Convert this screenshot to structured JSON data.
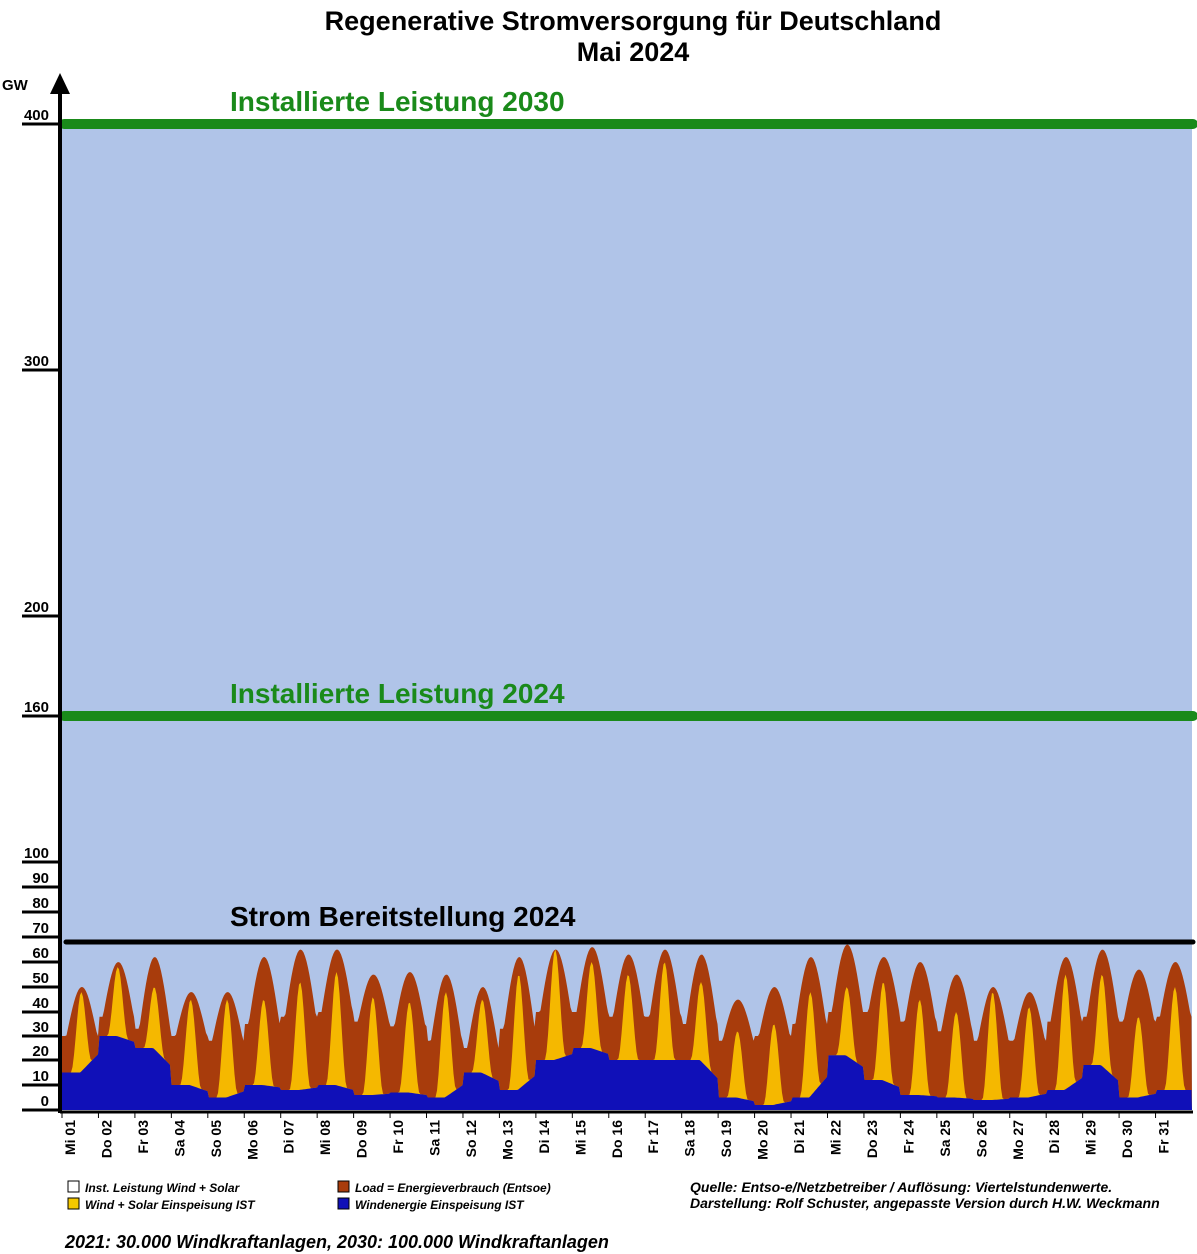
{
  "chart_data": {
    "type": "area",
    "title": "Regenerative Stromversorgung für Deutschland",
    "subtitle": "Mai 2024",
    "ylabel": "GW",
    "ylim": [
      0,
      400
    ],
    "yticks": [
      "0",
      "10",
      "20",
      "30",
      "40",
      "50",
      "60",
      "70",
      "80",
      "90",
      "100",
      "160",
      "200",
      "300",
      "400"
    ],
    "categories": [
      "Mi 01",
      "Do 02",
      "Fr 03",
      "Sa 04",
      "So 05",
      "Mo 06",
      "Di 07",
      "Mi 08",
      "Do 09",
      "Fr 10",
      "Sa 11",
      "So 12",
      "Mo 13",
      "Di 14",
      "Mi 15",
      "Do 16",
      "Fr 17",
      "Sa 18",
      "So 19",
      "Mo 20",
      "Di 21",
      "Mi 22",
      "Do 23",
      "Fr 24",
      "Sa 25",
      "So 26",
      "Mo 27",
      "Di 28",
      "Mi 29",
      "Do 30",
      "Fr 31"
    ],
    "reference_lines": [
      {
        "value": 400,
        "label": "Installierte Leistung 2030",
        "color": "#1a8a1a"
      },
      {
        "value": 160,
        "label": "Installierte Leistung 2024",
        "color": "#1a8a1a"
      },
      {
        "value": 68,
        "label": "Strom Bereitstellung 2024",
        "color": "#000000"
      }
    ],
    "series": [
      {
        "name": "Load = Energieverbrauch (Entsoe)",
        "color": "#a83c0c",
        "day_max": [
          50,
          60,
          62,
          48,
          48,
          62,
          65,
          65,
          55,
          56,
          55,
          50,
          62,
          65,
          66,
          63,
          65,
          63,
          45,
          50,
          62,
          67,
          62,
          60,
          55,
          50,
          48,
          62,
          65,
          57,
          60
        ],
        "day_min": [
          30,
          38,
          33,
          30,
          28,
          35,
          38,
          40,
          36,
          34,
          28,
          25,
          33,
          40,
          40,
          38,
          38,
          35,
          28,
          30,
          35,
          40,
          40,
          36,
          32,
          28,
          28,
          36,
          38,
          36,
          38
        ]
      },
      {
        "name": "Wind + Solar Einspeisung IST",
        "color": "#f5b800",
        "day_peak": [
          48,
          58,
          50,
          45,
          45,
          45,
          52,
          56,
          46,
          44,
          48,
          45,
          55,
          65,
          60,
          55,
          60,
          52,
          32,
          35,
          48,
          50,
          52,
          45,
          40,
          48,
          42,
          55,
          55,
          38,
          50
        ]
      },
      {
        "name": "Windenergie Einspeisung IST",
        "color": "#1010b8",
        "day_values": [
          15,
          30,
          25,
          10,
          5,
          10,
          8,
          10,
          6,
          7,
          5,
          15,
          8,
          20,
          25,
          20,
          20,
          20,
          5,
          2,
          5,
          22,
          12,
          6,
          5,
          4,
          5,
          8,
          18,
          5,
          8
        ]
      },
      {
        "name": "Inst. Leistung Wind + Solar",
        "color": "#b0c4e8"
      }
    ],
    "legend": [
      {
        "label": "Inst. Leistung Wind + Solar",
        "color": "#ffffff"
      },
      {
        "label": "Wind + Solar Einspeisung IST",
        "color": "#f5c800"
      },
      {
        "label": "Load = Energieverbrauch (Entsoe)",
        "color": "#a83c0c"
      },
      {
        "label": "Windenergie Einspeisung IST",
        "color": "#1010b8"
      }
    ],
    "source_lines": [
      "Quelle: Entso-e/Netzbetreiber / Auflösung: Viertelstundenwerte.",
      "Darstellung: Rolf Schuster, angepasste Version durch H.W. Weckmann"
    ],
    "footnote": "2021: 30.000 Windkraftanlagen, 2030: 100.000 Windkraftanlagen"
  }
}
